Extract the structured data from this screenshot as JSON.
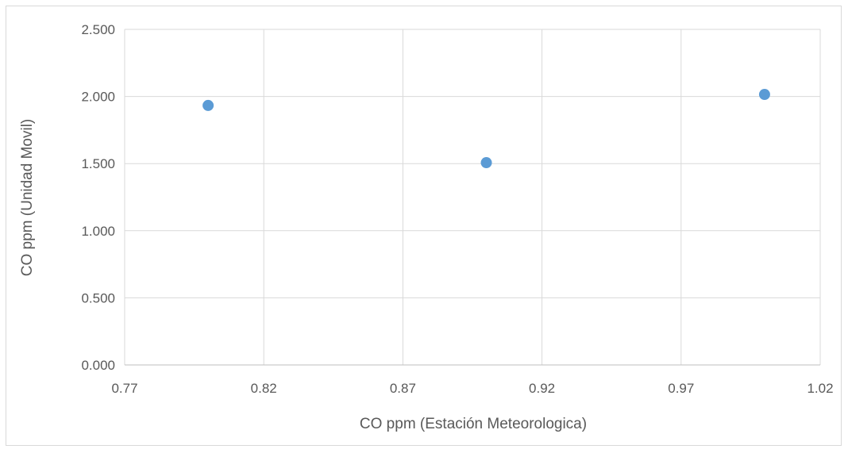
{
  "chart_data": {
    "type": "scatter",
    "xlabel": "CO ppm (Estación Meteorologica)",
    "ylabel": "CO ppm (Unidad Movil)",
    "xlim": [
      0.77,
      1.02
    ],
    "ylim": [
      0,
      2.5
    ],
    "x_ticks": [
      "0.77",
      "0.82",
      "0.87",
      "0.92",
      "0.97",
      "1.02"
    ],
    "y_ticks": [
      "0.000",
      "0.500",
      "1.000",
      "1.500",
      "2.000",
      "2.500"
    ],
    "grid": true,
    "legend": "none",
    "series": [
      {
        "points": [
          {
            "x": 0.8,
            "y": 1.933
          },
          {
            "x": 0.9,
            "y": 1.507
          },
          {
            "x": 1.0,
            "y": 2.015
          }
        ]
      }
    ],
    "colors": {
      "marker": "#5b9bd5",
      "grid": "#d9d9d9",
      "axis": "#bfbfbf",
      "text": "#595959"
    }
  }
}
